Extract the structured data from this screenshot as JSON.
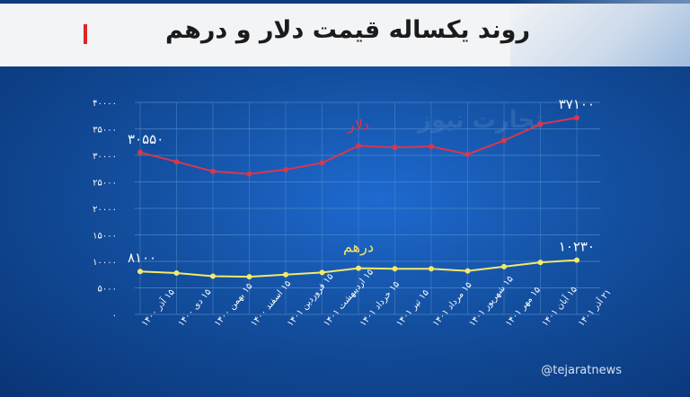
{
  "title": "روند یکساله قیمت دلار و درهم",
  "handle": "@tejaratnews",
  "watermark": "تجارت نیوز",
  "colors": {
    "dollar": "#d8374d",
    "dirham": "#f4e96a",
    "grid": "#4a86c8",
    "text": "#ffffff"
  },
  "chart_data": {
    "type": "line",
    "categories": [
      "۱۵ آذر ۱۴۰۰",
      "۱۵ دی ۱۴۰۰",
      "۱۵ بهمن ۱۴۰۰",
      "۱۵ اسفند ۱۴۰۰",
      "۱۵ فروردین ۱۴۰۱",
      "۱۵ اردیبهشت ۱۴۰۱",
      "۱۵ خرداد ۱۴۰۱",
      "۱۵ تیر ۱۴۰۱",
      "۱۵ مرداد ۱۴۰۱",
      "۱۵ شهریور ۱۴۰۱",
      "۱۵ مهر ۱۴۰۱",
      "۱۵ آبان ۱۴۰۱",
      "۲۱ آذر ۱۴۰۱"
    ],
    "series": [
      {
        "name": "دلار",
        "values": [
          30550,
          28800,
          27000,
          26500,
          27300,
          28600,
          31800,
          31500,
          31700,
          30200,
          32800,
          35900,
          37100
        ],
        "first_label": "۳۰۵۵۰",
        "last_label": "۳۷۱۰۰"
      },
      {
        "name": "درهم",
        "values": [
          8100,
          7800,
          7200,
          7100,
          7500,
          7900,
          8700,
          8600,
          8600,
          8200,
          9000,
          9800,
          10230
        ],
        "first_label": "۸۱۰۰",
        "last_label": "۱۰۲۳۰"
      }
    ],
    "yticks": [
      0,
      5000,
      10000,
      15000,
      20000,
      25000,
      30000,
      35000,
      40000
    ],
    "ytick_labels": [
      "۰",
      "۵۰۰۰",
      "۱۰۰۰۰",
      "۱۵۰۰۰",
      "۲۰۰۰۰",
      "۲۵۰۰۰",
      "۳۰۰۰۰",
      "۳۵۰۰۰",
      "۴۰۰۰۰"
    ],
    "ylim": [
      0,
      40000
    ],
    "grid": true,
    "title": "روند یکساله قیمت دلار و درهم",
    "xlabel": "",
    "ylabel": ""
  }
}
